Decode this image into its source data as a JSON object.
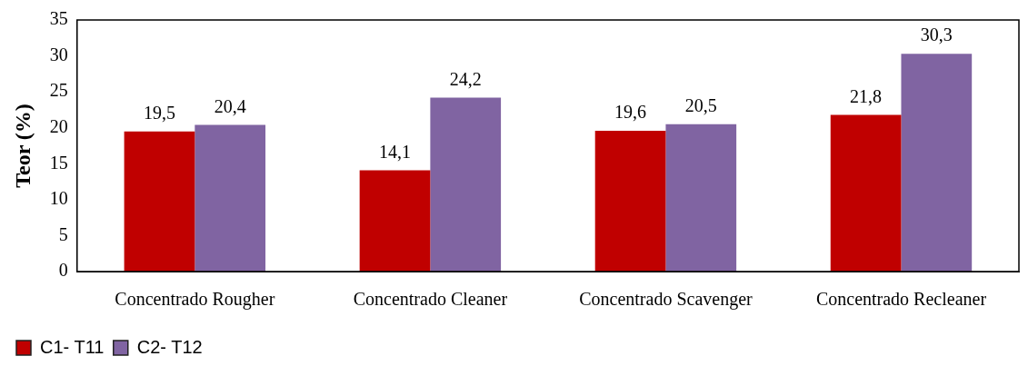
{
  "chart_data": {
    "type": "bar",
    "ylabel": "Teor (%)",
    "categories": [
      "Concentrado Rougher",
      "Concentrado Cleaner",
      "Concentrado Scavenger",
      "Concentrado Recleaner"
    ],
    "series": [
      {
        "name": "C1- T11",
        "color": "#c00000",
        "values": [
          19.5,
          14.1,
          19.6,
          21.8
        ],
        "value_labels": [
          "19,5",
          "14,1",
          "19,6",
          "21,8"
        ]
      },
      {
        "name": "C2- T12",
        "color": "#8064a2",
        "values": [
          20.4,
          24.2,
          20.5,
          30.3
        ],
        "value_labels": [
          "20,4",
          "24,2",
          "20,5",
          "30,3"
        ]
      }
    ],
    "ylim": [
      0,
      35
    ],
    "yticks": [
      0,
      5,
      10,
      15,
      20,
      25,
      30,
      35
    ],
    "grid": false,
    "legend": "bottom"
  }
}
